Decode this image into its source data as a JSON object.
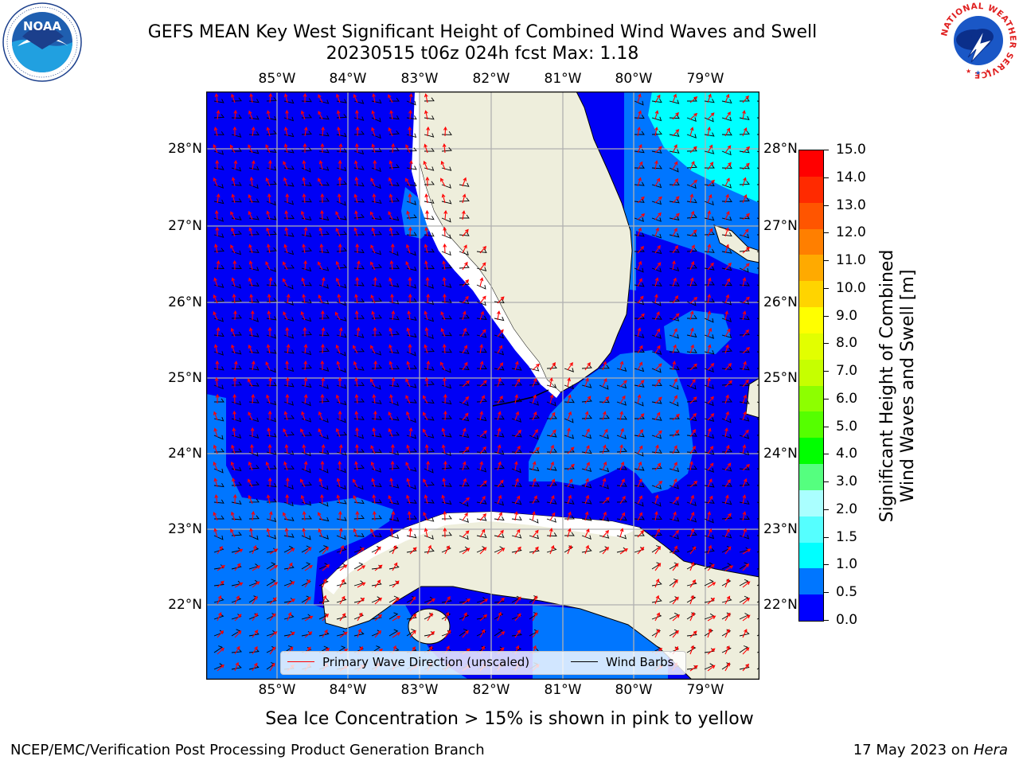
{
  "title": {
    "line1": "GEFS MEAN Key West Significant Height of Combined Wind Waves and Swell",
    "line2": "20230515 t06z 024h fcst   Max: 1.18"
  },
  "logos": {
    "left": {
      "icon": "noaa-logo",
      "text": "NOAA"
    },
    "right": {
      "icon": "nws-logo",
      "ring_text": "NATIONAL WEATHER SERVICE"
    }
  },
  "map": {
    "lon_labels": [
      "85°W",
      "84°W",
      "83°W",
      "82°W",
      "81°W",
      "80°W",
      "79°W"
    ],
    "lat_labels": [
      "28°N",
      "27°N",
      "26°N",
      "25°N",
      "24°N",
      "23°N",
      "22°N"
    ],
    "colors": {
      "ocean_low": "#0000f5",
      "ocean_mid": "#0076ff",
      "ocean_high": "#00ffff",
      "land": "#eeeedc",
      "grid": "#b0b0b0"
    }
  },
  "legend": {
    "wave_label": "Primary Wave Direction (unscaled)",
    "wave_color": "#ff0000",
    "barb_label": "Wind Barbs",
    "barb_color": "#000000"
  },
  "colorbar": {
    "label_line1": "Significant Height of Combined",
    "label_line2": "Wind Waves and Swell [m]",
    "ticks": [
      "15.0",
      "14.0",
      "13.0",
      "12.0",
      "11.0",
      "10.0",
      "9.0",
      "8.0",
      "7.0",
      "6.0",
      "5.0",
      "4.0",
      "3.0",
      "2.0",
      "1.5",
      "1.0",
      "0.5",
      "0.0"
    ],
    "colors_top_to_bottom": [
      "#ff0000",
      "#ff2a00",
      "#ff5500",
      "#ff7f00",
      "#ffaa00",
      "#ffd400",
      "#ffff00",
      "#e2ff00",
      "#c6ff00",
      "#8dff00",
      "#55ff00",
      "#00ff00",
      "#55ff7f",
      "#aaffff",
      "#55ffff",
      "#00ffff",
      "#0076ff",
      "#0000ff"
    ]
  },
  "note": "Sea Ice Concentration > 15% is shown in pink to yellow",
  "footer": {
    "left": "NCEP/EMC/Verification Post Processing Product Generation Branch",
    "right_prefix": "17 May 2023 on ",
    "right_host": "Hera"
  }
}
